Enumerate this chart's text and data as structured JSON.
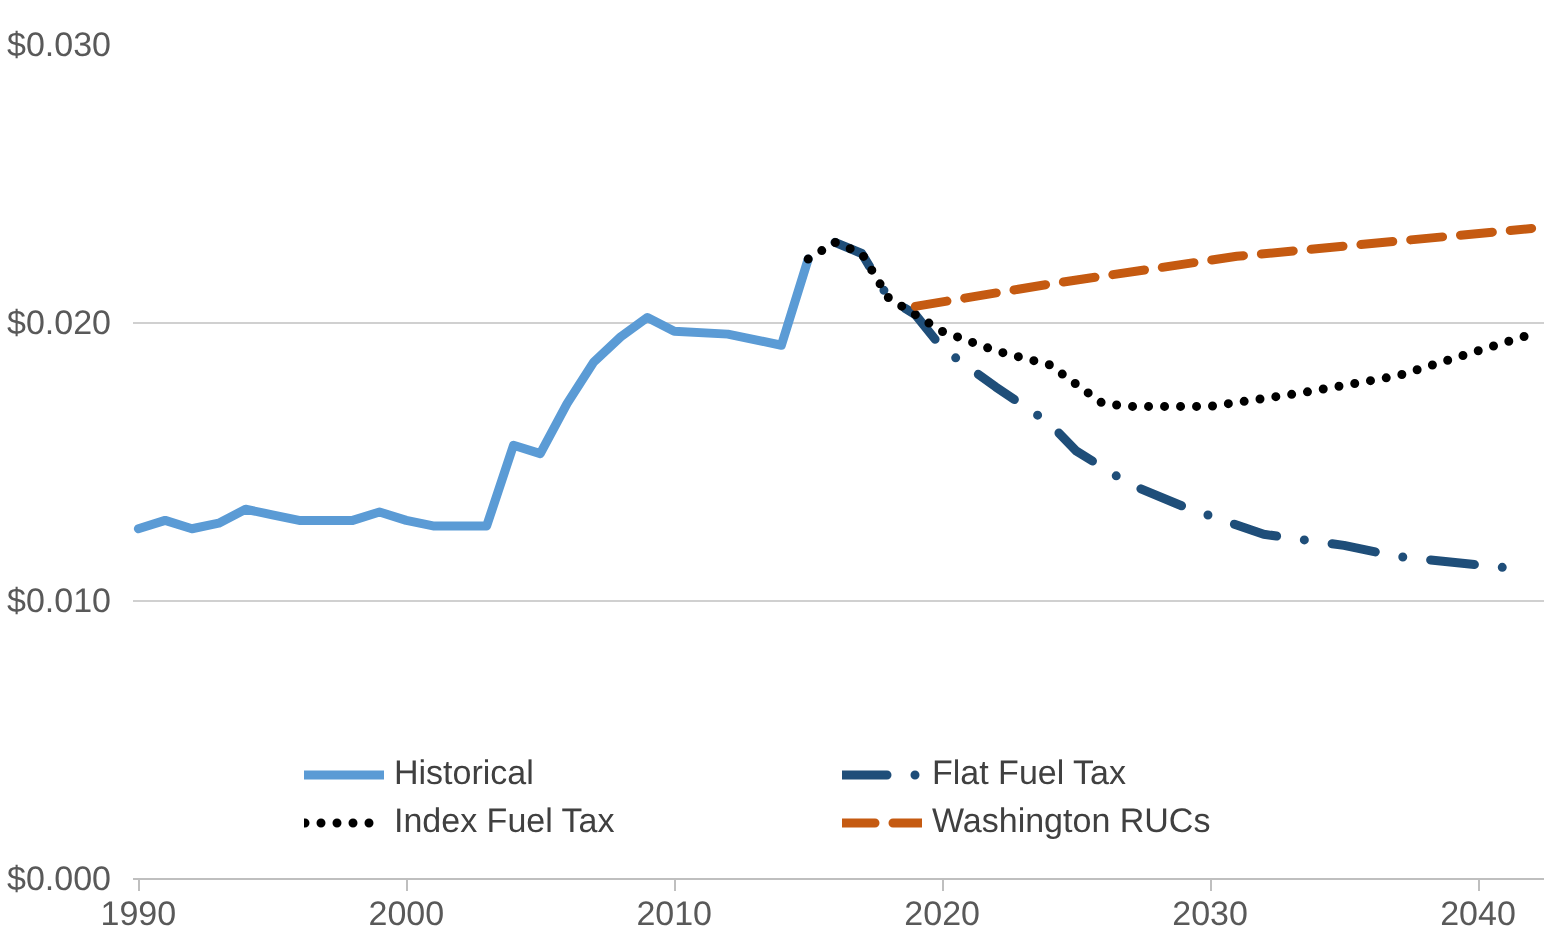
{
  "chart_data": {
    "type": "line",
    "xlim": [
      1989.8,
      2042.5
    ],
    "xticks": [
      1990,
      2000,
      2010,
      2020,
      2030,
      2040
    ],
    "ylim": [
      0,
      0.03
    ],
    "yticks": [
      {
        "value": 0,
        "label": "$0.000"
      },
      {
        "value": 0.01,
        "label": "$0.010"
      },
      {
        "value": 0.02,
        "label": "$0.020"
      },
      {
        "value": 0.03,
        "label": "$0.030"
      }
    ],
    "grid": "y",
    "legend": "bottom",
    "series": [
      {
        "name": "Historical",
        "color": "#5b9bd5",
        "line_style": "solid",
        "x": [
          1990,
          1991,
          1992,
          1993,
          1994,
          1995,
          1996,
          1998,
          1999,
          2000,
          2001,
          2003,
          2004,
          2005,
          2006,
          2007,
          2008,
          2009,
          2010,
          2012,
          2014,
          2015
        ],
        "values": [
          0.0126,
          0.0129,
          0.0126,
          0.0128,
          0.0133,
          0.0131,
          0.0129,
          0.0129,
          0.0132,
          0.0129,
          0.0127,
          0.0127,
          0.0156,
          0.0153,
          0.0171,
          0.0186,
          0.0195,
          0.0202,
          0.0197,
          0.0196,
          0.0192,
          0.0223
        ]
      },
      {
        "name": "Flat Fuel Tax",
        "color": "#1f4e79",
        "line_style": "dashdot",
        "x": [
          2016,
          2017,
          2018,
          2019,
          2020,
          2022,
          2024,
          2025,
          2027,
          2029,
          2032,
          2035,
          2037,
          2041
        ],
        "values": [
          0.0229,
          0.0225,
          0.0209,
          0.0203,
          0.0191,
          0.0177,
          0.0164,
          0.0154,
          0.0142,
          0.0134,
          0.0124,
          0.012,
          0.0116,
          0.0112
        ]
      },
      {
        "name": "Index Fuel Tax",
        "color": "#000000",
        "line_style": "dotted",
        "x": [
          2015,
          2016,
          2017,
          2018,
          2019,
          2020,
          2022,
          2024,
          2025,
          2026,
          2027,
          2030,
          2033.5,
          2037,
          2040,
          2042
        ],
        "values": [
          0.0223,
          0.0229,
          0.0225,
          0.0209,
          0.0203,
          0.0197,
          0.019,
          0.0185,
          0.0178,
          0.0171,
          0.017,
          0.017,
          0.0175,
          0.0181,
          0.019,
          0.0196
        ]
      },
      {
        "name": "Washington RUCs",
        "color": "#c55a11",
        "line_style": "dashed",
        "x": [
          2019,
          2024,
          2031,
          2042
        ],
        "values": [
          0.0206,
          0.0214,
          0.0224,
          0.0234
        ]
      }
    ]
  }
}
